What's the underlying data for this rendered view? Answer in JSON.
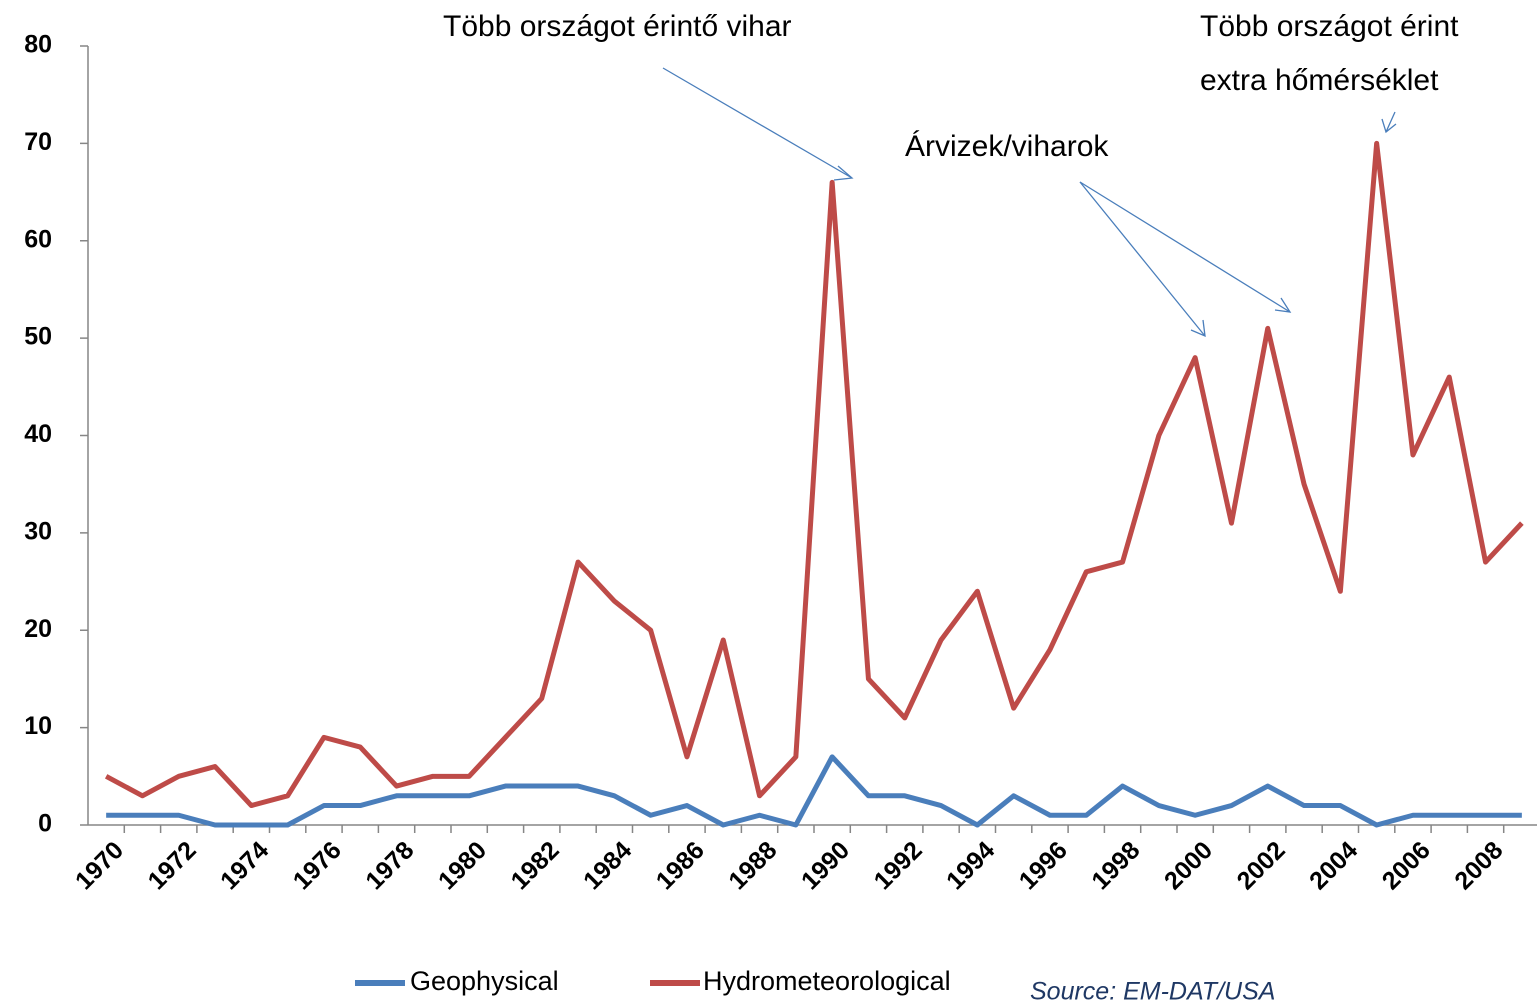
{
  "chart_data": {
    "type": "line",
    "categories": [
      "1970",
      null,
      "1972",
      null,
      "1974",
      null,
      "1976",
      null,
      "1978",
      null,
      "1980",
      null,
      "1982",
      null,
      "1984",
      null,
      "1986",
      null,
      "1988",
      null,
      "1990",
      null,
      "1992",
      null,
      "1994",
      null,
      "1996",
      null,
      "1998",
      null,
      "2000",
      null,
      "2002",
      null,
      "2004",
      null,
      "2006",
      null,
      "2008",
      null
    ],
    "series": [
      {
        "name": "Geophysical",
        "color": "#4a7ebb",
        "values": [
          1,
          1,
          1,
          0,
          0,
          0,
          2,
          2,
          3,
          3,
          3,
          4,
          4,
          4,
          3,
          1,
          2,
          0,
          1,
          0,
          7,
          3,
          3,
          2,
          0,
          3,
          1,
          1,
          4,
          2,
          1,
          2,
          4,
          2,
          2,
          0,
          1,
          1,
          1,
          1
        ]
      },
      {
        "name": "Hydrometeorological",
        "color": "#be4b48",
        "values": [
          5,
          3,
          5,
          6,
          2,
          3,
          9,
          8,
          4,
          5,
          5,
          9,
          13,
          27,
          23,
          20,
          7,
          19,
          3,
          7,
          66,
          15,
          11,
          19,
          24,
          12,
          18,
          26,
          27,
          40,
          48,
          31,
          51,
          35,
          24,
          70,
          38,
          46,
          27,
          31
        ]
      }
    ],
    "ylim": [
      0,
      80
    ],
    "yticks": [
      0,
      10,
      20,
      30,
      40,
      50,
      60,
      70,
      80
    ],
    "annotations": [
      {
        "lines": [
          "Több országot érintő vihar"
        ]
      },
      {
        "lines": [
          "Több országot érint",
          "extra hőmérséklet"
        ]
      },
      {
        "lines": [
          "Árvizek/viharok"
        ]
      }
    ],
    "source": "Source: EM-DAT/USA"
  }
}
